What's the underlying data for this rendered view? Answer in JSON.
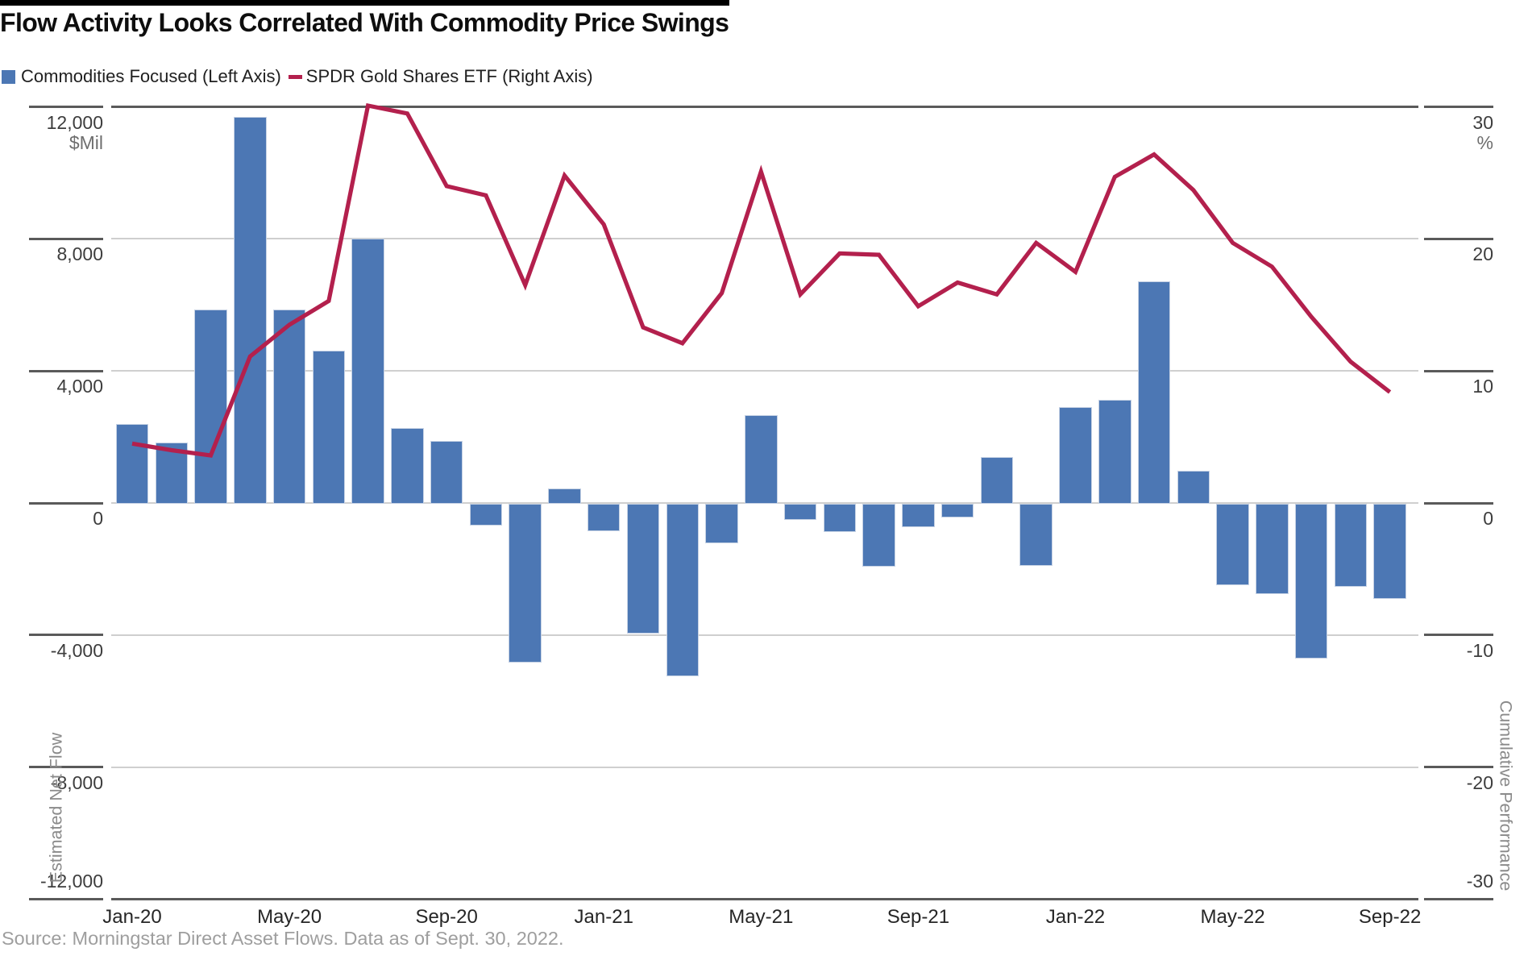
{
  "header": {
    "title": "Flow Activity Looks Correlated With Commodity Price Swings"
  },
  "legend": {
    "items": [
      {
        "label": "Commodities Focused (Left Axis)",
        "swatch": "square",
        "color": "#4C77B4"
      },
      {
        "label": "SPDR Gold Shares ETF (Right Axis)",
        "swatch": "dash",
        "color": "#B3204D"
      }
    ]
  },
  "source": "Source: Morningstar Direct Asset Flows. Data as of Sept. 30, 2022.",
  "colors": {
    "bar": "#4C77B4",
    "line": "#B3204D",
    "grid_light": "#cfcfcf",
    "axis_dark": "#5a5a5a",
    "top_bar": "#000000"
  },
  "chart_data": {
    "type": "bar+line",
    "title": "Flow Activity Looks Correlated With Commodity Price Swings",
    "x": [
      "Jan-20",
      "Feb-20",
      "Mar-20",
      "Apr-20",
      "May-20",
      "Jun-20",
      "Jul-20",
      "Aug-20",
      "Sep-20",
      "Oct-20",
      "Nov-20",
      "Dec-20",
      "Jan-21",
      "Feb-21",
      "Mar-21",
      "Apr-21",
      "May-21",
      "Jun-21",
      "Jul-21",
      "Aug-21",
      "Sep-21",
      "Oct-21",
      "Nov-21",
      "Dec-21",
      "Jan-22",
      "Feb-22",
      "Mar-22",
      "Apr-22",
      "May-22",
      "Jun-22",
      "Jul-22",
      "Aug-22",
      "Sep-22"
    ],
    "x_tick_labels_shown": [
      "Jan-20",
      "May-20",
      "Sep-20",
      "Jan-21",
      "May-21",
      "Sep-21",
      "Jan-22",
      "May-22",
      "Sep-22"
    ],
    "series": [
      {
        "name": "Commodities Focused (Left Axis)",
        "type": "bar",
        "axis": "left",
        "color": "#4C77B4",
        "values": [
          2400,
          1830,
          5850,
          11700,
          5850,
          4620,
          8000,
          2270,
          1870,
          -690,
          -4840,
          450,
          -860,
          -3950,
          -5240,
          -1220,
          2660,
          -510,
          -880,
          -1930,
          -735,
          -430,
          1390,
          -1900,
          2915,
          3130,
          6710,
          980,
          -2490,
          -2760,
          -4710,
          -2530,
          -2910
        ]
      },
      {
        "name": "SPDR Gold Shares ETF (Right Axis)",
        "type": "line",
        "axis": "right",
        "color": "#B3204D",
        "values": [
          4.5,
          4.0,
          3.6,
          11.1,
          13.5,
          15.3,
          30.1,
          29.5,
          24.0,
          23.3,
          16.5,
          24.8,
          21.1,
          13.3,
          12.1,
          15.9,
          25.1,
          15.8,
          18.9,
          18.8,
          14.9,
          16.7,
          15.8,
          19.7,
          17.5,
          24.7,
          26.4,
          23.7,
          19.7,
          17.9,
          14.1,
          10.7,
          8.4
        ]
      }
    ],
    "left_axis": {
      "title": "Estimated Net Flow",
      "unit": "$Mil",
      "min": -12000,
      "max": 12000,
      "tick_step": 4000,
      "tick_labels": [
        "12,000",
        "8,000",
        "4,000",
        "0",
        "-4,000",
        "-8,000",
        "-12,000"
      ]
    },
    "right_axis": {
      "title": "Cumulative Performance",
      "unit": "%",
      "min": -30,
      "max": 30,
      "tick_step": 10,
      "tick_labels": [
        "30",
        "20",
        "10",
        "0",
        "-10",
        "-20",
        "-30"
      ]
    },
    "grid": true,
    "legend_position": "top-left"
  }
}
